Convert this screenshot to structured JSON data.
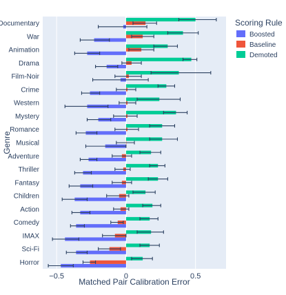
{
  "chart_data": {
    "type": "bar",
    "orientation": "horizontal",
    "barmode": "group",
    "xlabel": "Matched Pair Calibration Error",
    "ylabel": "Genre",
    "xlim": [
      -0.6,
      0.72
    ],
    "xticks": [
      -0.5,
      0,
      0.5
    ],
    "xtick_labels": [
      "−0.5",
      "0",
      "0.5"
    ],
    "grid": true,
    "legend_title": "Scoring Rule",
    "legend_position": "top-right",
    "categories": [
      "Documentary",
      "War",
      "Animation",
      "Drama",
      "Film-Noir",
      "Crime",
      "Western",
      "Mystery",
      "Romance",
      "Musical",
      "Adventure",
      "Thriller",
      "Fantasy",
      "Children",
      "Action",
      "Comedy",
      "IMAX",
      "Sci-Fi",
      "Horror"
    ],
    "series": [
      {
        "name": "Boosted",
        "color": "#636efa",
        "values": [
          -0.02,
          -0.23,
          -0.28,
          -0.14,
          -0.04,
          -0.26,
          -0.28,
          -0.2,
          -0.29,
          -0.15,
          -0.27,
          -0.31,
          -0.33,
          -0.37,
          -0.33,
          -0.36,
          -0.44,
          -0.36,
          -0.47
        ],
        "error_low": [
          -0.2,
          -0.33,
          -0.37,
          -0.22,
          -0.24,
          -0.32,
          -0.44,
          -0.28,
          -0.36,
          -0.29,
          -0.33,
          -0.37,
          -0.41,
          -0.46,
          -0.39,
          -0.4,
          -0.53,
          -0.43,
          -0.56
        ],
        "error_high": [
          0.15,
          -0.12,
          -0.19,
          -0.06,
          0.16,
          -0.19,
          -0.13,
          -0.11,
          -0.21,
          0.0,
          -0.21,
          -0.25,
          -0.24,
          -0.28,
          -0.26,
          -0.3,
          -0.34,
          -0.28,
          -0.38
        ]
      },
      {
        "name": "Baseline",
        "color": "#ef553b",
        "values": [
          0.14,
          0.12,
          0.11,
          0.04,
          0.02,
          0.01,
          0.01,
          0.01,
          0.01,
          0.0,
          -0.03,
          -0.02,
          -0.03,
          -0.05,
          -0.04,
          -0.06,
          -0.08,
          -0.12,
          -0.26
        ],
        "error_low": [
          0.05,
          0.04,
          0.02,
          -0.03,
          -0.08,
          -0.07,
          -0.05,
          -0.09,
          -0.08,
          -0.07,
          -0.1,
          -0.08,
          -0.1,
          -0.14,
          -0.09,
          -0.11,
          -0.17,
          -0.2,
          -0.31
        ],
        "error_high": [
          0.22,
          0.2,
          0.2,
          0.11,
          0.11,
          0.07,
          0.07,
          0.08,
          0.09,
          0.06,
          0.04,
          0.03,
          0.04,
          0.02,
          0.02,
          -0.02,
          0.0,
          -0.04,
          -0.22
        ]
      },
      {
        "name": "Demoted",
        "color": "#00cc96",
        "values": [
          0.5,
          0.41,
          0.3,
          0.47,
          0.38,
          0.29,
          0.24,
          0.36,
          0.26,
          0.26,
          0.18,
          0.23,
          0.23,
          0.14,
          0.19,
          0.17,
          0.18,
          0.17,
          0.12
        ],
        "error_low": [
          0.38,
          0.3,
          0.2,
          0.41,
          0.18,
          0.23,
          0.08,
          0.27,
          0.17,
          0.17,
          0.1,
          0.17,
          0.16,
          0.05,
          0.12,
          0.1,
          0.08,
          0.1,
          0.04
        ],
        "error_high": [
          0.65,
          0.52,
          0.37,
          0.51,
          0.61,
          0.35,
          0.39,
          0.44,
          0.35,
          0.37,
          0.25,
          0.28,
          0.3,
          0.21,
          0.25,
          0.23,
          0.27,
          0.24,
          0.19
        ]
      }
    ]
  }
}
